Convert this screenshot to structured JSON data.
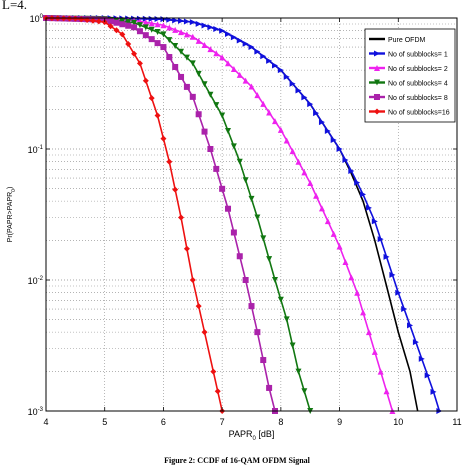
{
  "header_fragment": "L=4.",
  "caption": "Figure 2: CCDF of 16-QAM OFDM Signal",
  "chart_data": {
    "type": "line",
    "xlabel": "PAPR_0 [dB]",
    "ylabel": "Pr(PAPR>PAPR_0)",
    "xlim": [
      4,
      11
    ],
    "ylim": [
      0.001,
      1
    ],
    "yscale": "log",
    "xticks": [
      "4",
      "5",
      "6",
      "7",
      "8",
      "9",
      "10",
      "11"
    ],
    "yticks": [
      {
        "value": 1,
        "mantissa": "10",
        "exp": "0"
      },
      {
        "value": 0.1,
        "mantissa": "10",
        "exp": "-1"
      },
      {
        "value": 0.01,
        "mantissa": "10",
        "exp": "-2"
      },
      {
        "value": 0.001,
        "mantissa": "10",
        "exp": "-3"
      }
    ],
    "grid": true,
    "legend_position": "top-right",
    "series": [
      {
        "name": "Pure OFDM",
        "color": "#000000",
        "marker": "none",
        "x": [
          4,
          5,
          6,
          6.5,
          7,
          7.5,
          8,
          8.5,
          9,
          9.2,
          9.4,
          9.6,
          9.8,
          10,
          10.2,
          10.33
        ],
        "y": [
          1,
          1,
          0.98,
          0.93,
          0.8,
          0.6,
          0.4,
          0.22,
          0.1,
          0.065,
          0.04,
          0.02,
          0.009,
          0.004,
          0.002,
          0.001
        ]
      },
      {
        "name": "No of subblocks= 1",
        "color": "#1010dd",
        "marker": "triangle-right",
        "x": [
          4,
          5,
          6,
          6.5,
          7,
          7.5,
          8,
          8.5,
          9,
          9.2,
          9.4,
          9.6,
          9.8,
          10,
          10.2,
          10.4,
          10.6,
          10.7
        ],
        "y": [
          1,
          1,
          0.98,
          0.93,
          0.8,
          0.6,
          0.4,
          0.22,
          0.1,
          0.068,
          0.045,
          0.028,
          0.015,
          0.008,
          0.0045,
          0.0025,
          0.0014,
          0.001
        ]
      },
      {
        "name": "No of subblocks= 2",
        "color": "#ee22ee",
        "marker": "triangle-up",
        "x": [
          4,
          5,
          5.5,
          6,
          6.5,
          7,
          7.5,
          8,
          8.5,
          9,
          9.3,
          9.5,
          9.7,
          9.9
        ],
        "y": [
          1,
          0.99,
          0.96,
          0.88,
          0.72,
          0.5,
          0.3,
          0.14,
          0.055,
          0.018,
          0.008,
          0.004,
          0.002,
          0.001
        ]
      },
      {
        "name": "No of subblocks= 4",
        "color": "#117711",
        "marker": "triangle-down",
        "x": [
          4,
          5,
          5.5,
          6,
          6.5,
          7,
          7.3,
          7.6,
          7.9,
          8.1,
          8.3,
          8.5
        ],
        "y": [
          1,
          0.98,
          0.92,
          0.75,
          0.45,
          0.18,
          0.08,
          0.03,
          0.01,
          0.005,
          0.002,
          0.001
        ]
      },
      {
        "name": "No of subblocks= 8",
        "color": "#aa22aa",
        "marker": "square",
        "x": [
          4,
          5,
          5.5,
          6,
          6.5,
          6.8,
          7.1,
          7.4,
          7.6,
          7.8,
          7.9
        ],
        "y": [
          1,
          0.97,
          0.85,
          0.6,
          0.25,
          0.1,
          0.035,
          0.01,
          0.004,
          0.0015,
          0.001
        ]
      },
      {
        "name": "No of subblocks=16",
        "color": "#ee1111",
        "marker": "diamond",
        "x": [
          4,
          4.5,
          5,
          5.3,
          5.6,
          5.9,
          6.1,
          6.3,
          6.5,
          6.7,
          6.85,
          7
        ],
        "y": [
          1,
          0.99,
          0.93,
          0.75,
          0.45,
          0.18,
          0.08,
          0.03,
          0.01,
          0.004,
          0.002,
          0.001
        ]
      }
    ]
  }
}
